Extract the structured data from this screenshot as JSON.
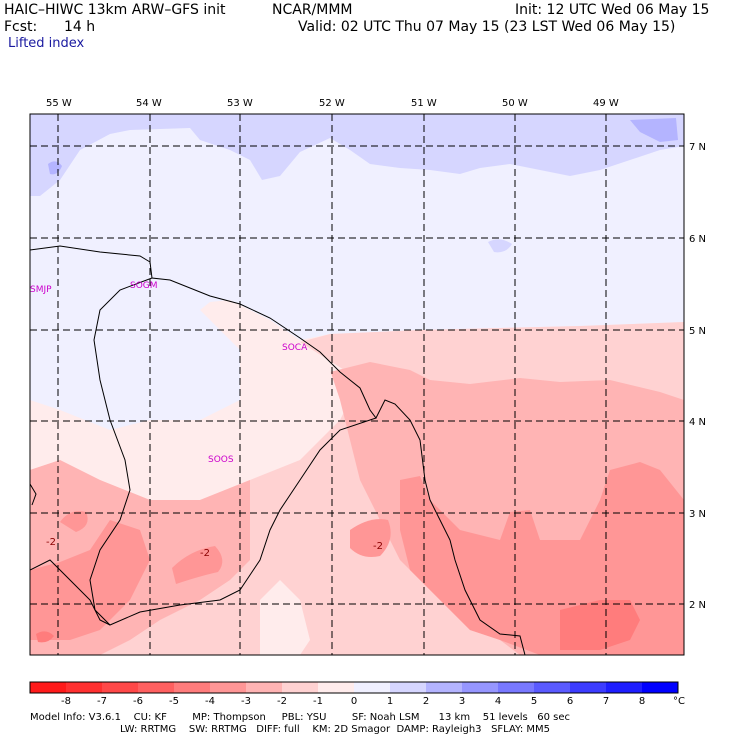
{
  "header": {
    "model": "HAIC–HIWC 13km ARW–GFS init",
    "org": "NCAR/MMM",
    "init": "Init: 12 UTC Wed 06 May 15",
    "fcst_label": "Fcst:",
    "fcst_value": "14 h",
    "valid": "Valid: 02 UTC Thu 07 May 15 (23 LST Wed 06 May 15)",
    "field": "Lifted index"
  },
  "map": {
    "lon_labels": [
      "55 W",
      "54 W",
      "53 W",
      "52 W",
      "51 W",
      "50 W",
      "49 W"
    ],
    "lat_labels": [
      "7 N",
      "6 N",
      "5 N",
      "4 N",
      "3 N",
      "2 N"
    ],
    "stations": [
      "SMJP",
      "SOGM",
      "SOCA",
      "SOOS"
    ],
    "contour_labels": [
      "-2",
      "-2",
      "-2"
    ]
  },
  "colorbar": {
    "ticks": [
      "-8",
      "-7",
      "-6",
      "-5",
      "-4",
      "-3",
      "-2",
      "-1",
      "0",
      "1",
      "2",
      "3",
      "4",
      "5",
      "6",
      "7",
      "8"
    ],
    "unit": "°C",
    "colors": [
      "#ff1a1a",
      "#ff3030",
      "#ff4848",
      "#ff6060",
      "#ff7c7c",
      "#ff9696",
      "#ffb4b4",
      "#ffd2d2",
      "#ffecec",
      "#f0f0ff",
      "#d6d6ff",
      "#b4b4ff",
      "#9696ff",
      "#7878ff",
      "#5a5aff",
      "#3c3cff",
      "#1e1eff",
      "#0000ff"
    ]
  },
  "footer": {
    "line1": "Model Info: V3.6.1    CU: KF        MP: Thompson     PBL: YSU        SF: Noah LSM      13 km    51 levels   60 sec",
    "line2": "LW: RRTMG    SW: RRTMG   DIFF: full    KM: 2D Smagor  DAMP: Rayleigh3   SFLAY: MM5"
  }
}
